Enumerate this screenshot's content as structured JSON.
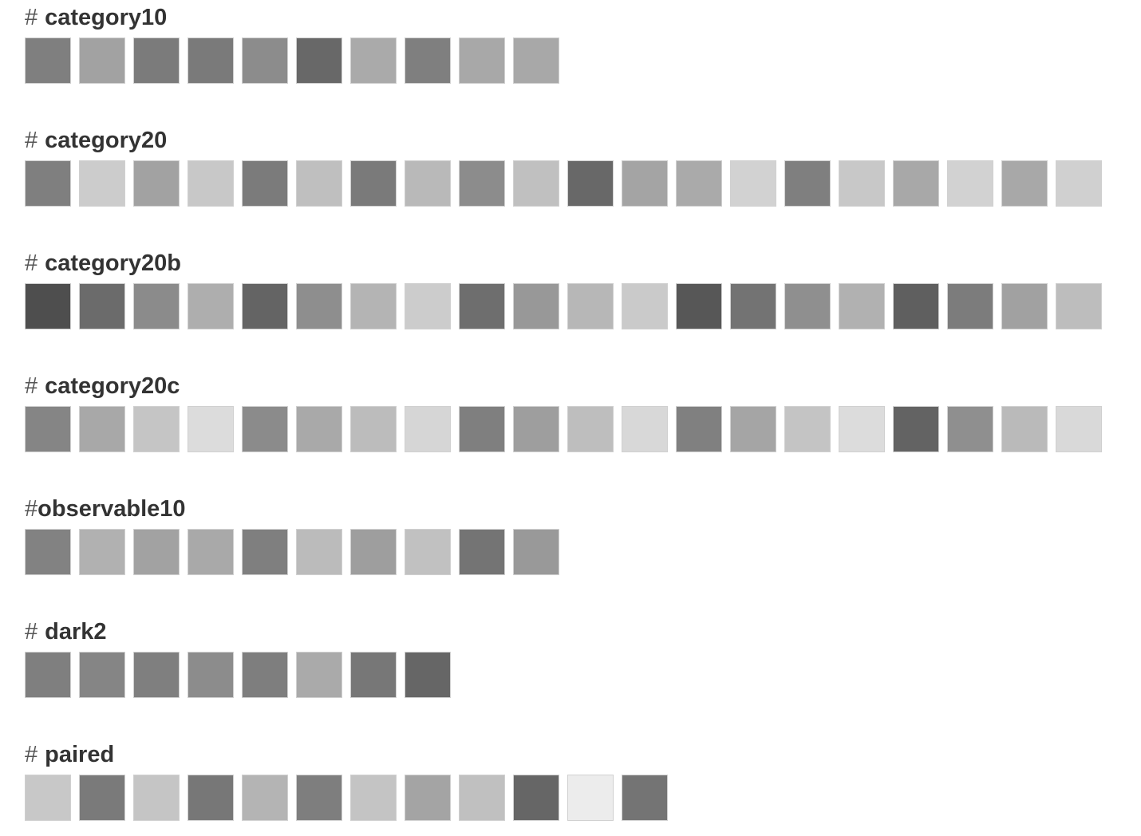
{
  "hash_symbol": "#",
  "palettes": [
    {
      "name": "category10",
      "space_after_hash": true,
      "colors": [
        "#7f7f7f",
        "#a2a2a2",
        "#7b7b7b",
        "#7a7a7a",
        "#8c8c8c",
        "#686868",
        "#aaaaaa",
        "#7f7f7f",
        "#a8a8a8",
        "#a8a8a8"
      ]
    },
    {
      "name": "category20",
      "space_after_hash": true,
      "colors": [
        "#7f7f7f",
        "#cccccc",
        "#a2a2a2",
        "#c8c8c8",
        "#7b7b7b",
        "#bfbfbf",
        "#7a7a7a",
        "#b9b9b9",
        "#8c8c8c",
        "#c0c0c0",
        "#686868",
        "#a4a4a4",
        "#aaaaaa",
        "#d2d2d2",
        "#7f7f7f",
        "#c8c8c8",
        "#a8a8a8",
        "#d2d2d2",
        "#a8a8a8",
        "#d0d0d0"
      ]
    },
    {
      "name": "category20b",
      "space_after_hash": true,
      "colors": [
        "#4e4e4e",
        "#6b6b6b",
        "#8b8b8b",
        "#aeaeae",
        "#646464",
        "#8e8e8e",
        "#b4b4b4",
        "#cccccc",
        "#6e6e6e",
        "#989898",
        "#b7b7b7",
        "#cacaca",
        "#575757",
        "#737373",
        "#8f8f8f",
        "#b1b1b1",
        "#5f5f5f",
        "#7c7c7c",
        "#a1a1a1",
        "#bdbdbd"
      ]
    },
    {
      "name": "category20c",
      "space_after_hash": true,
      "colors": [
        "#858585",
        "#a8a8a8",
        "#c5c5c5",
        "#dcdcdc",
        "#8b8b8b",
        "#a9a9a9",
        "#bcbcbc",
        "#d6d6d6",
        "#7f7f7f",
        "#9e9e9e",
        "#bebebe",
        "#d8d8d8",
        "#808080",
        "#a5a5a5",
        "#c4c4c4",
        "#dcdcdc",
        "#636363",
        "#8f8f8f",
        "#bababa",
        "#d9d9d9"
      ]
    },
    {
      "name": "observable10",
      "space_after_hash": false,
      "colors": [
        "#828282",
        "#b1b1b1",
        "#a2a2a2",
        "#a9a9a9",
        "#7f7f7f",
        "#bbbbbb",
        "#9e9e9e",
        "#c1c1c1",
        "#747474",
        "#999999"
      ]
    },
    {
      "name": "dark2",
      "space_after_hash": true,
      "colors": [
        "#7f7f7f",
        "#858585",
        "#7f7f7f",
        "#8c8c8c",
        "#7e7e7e",
        "#aaaaaa",
        "#777777",
        "#666666"
      ]
    },
    {
      "name": "paired",
      "space_after_hash": true,
      "colors": [
        "#c8c8c8",
        "#7a7a7a",
        "#c5c5c5",
        "#777777",
        "#b4b4b4",
        "#7e7e7e",
        "#c4c4c4",
        "#a4a4a4",
        "#c0c0c0",
        "#666666",
        "#ececec",
        "#747474"
      ]
    }
  ]
}
